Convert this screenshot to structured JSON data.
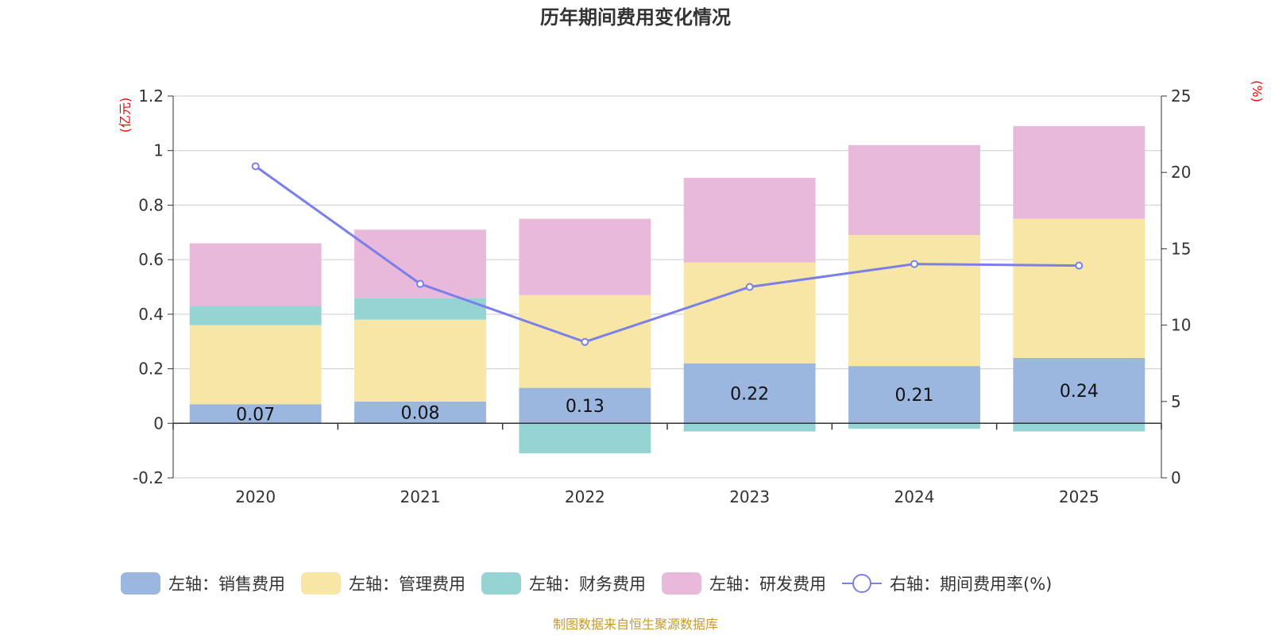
{
  "chart_data": {
    "type": "bar",
    "stacked": true,
    "title": "历年期间费用变化情况",
    "categories": [
      "2020",
      "2021",
      "2022",
      "2023",
      "2024",
      "2025"
    ],
    "left_axis": {
      "unit": "(亿元)",
      "min": -0.2,
      "max": 1.2,
      "ticks": [
        -0.2,
        0,
        0.2,
        0.4,
        0.6,
        0.8,
        1,
        1.2
      ],
      "tick_labels": [
        "-0.2",
        "0",
        "0.2",
        "0.4",
        "0.6",
        "0.8",
        "1",
        "1.2"
      ]
    },
    "right_axis": {
      "unit": "(%)",
      "min": 0,
      "max": 25,
      "ticks": [
        0,
        5,
        10,
        15,
        20,
        25
      ],
      "tick_labels": [
        "0",
        "5",
        "10",
        "15",
        "20",
        "25"
      ]
    },
    "series": [
      {
        "name": "左轴：销售费用",
        "axis": "left",
        "color": "#9bb7e0",
        "values": [
          0.07,
          0.08,
          0.13,
          0.22,
          0.21,
          0.24
        ],
        "labels": [
          "0.07",
          "0.08",
          "0.13",
          "0.22",
          "0.21",
          "0.24"
        ]
      },
      {
        "name": "左轴：管理费用",
        "axis": "left",
        "color": "#f7e6a6",
        "values": [
          0.29,
          0.3,
          0.34,
          0.37,
          0.48,
          0.51
        ]
      },
      {
        "name": "左轴：财务费用",
        "axis": "left",
        "color": "#96d3d3",
        "values": [
          0.07,
          0.08,
          -0.11,
          -0.03,
          -0.02,
          -0.03
        ]
      },
      {
        "name": "左轴：研发费用",
        "axis": "left",
        "color": "#e8b9da",
        "values": [
          0.23,
          0.25,
          0.28,
          0.31,
          0.33,
          0.34
        ]
      },
      {
        "name": "右轴：期间费用率(%)",
        "axis": "right",
        "type": "line",
        "color": "#7b7fe8",
        "values": [
          20.4,
          12.7,
          8.9,
          12.5,
          14.0,
          13.9
        ]
      }
    ],
    "legend_position": "bottom",
    "grid": true
  },
  "source": "制图数据来自恒生聚源数据库"
}
